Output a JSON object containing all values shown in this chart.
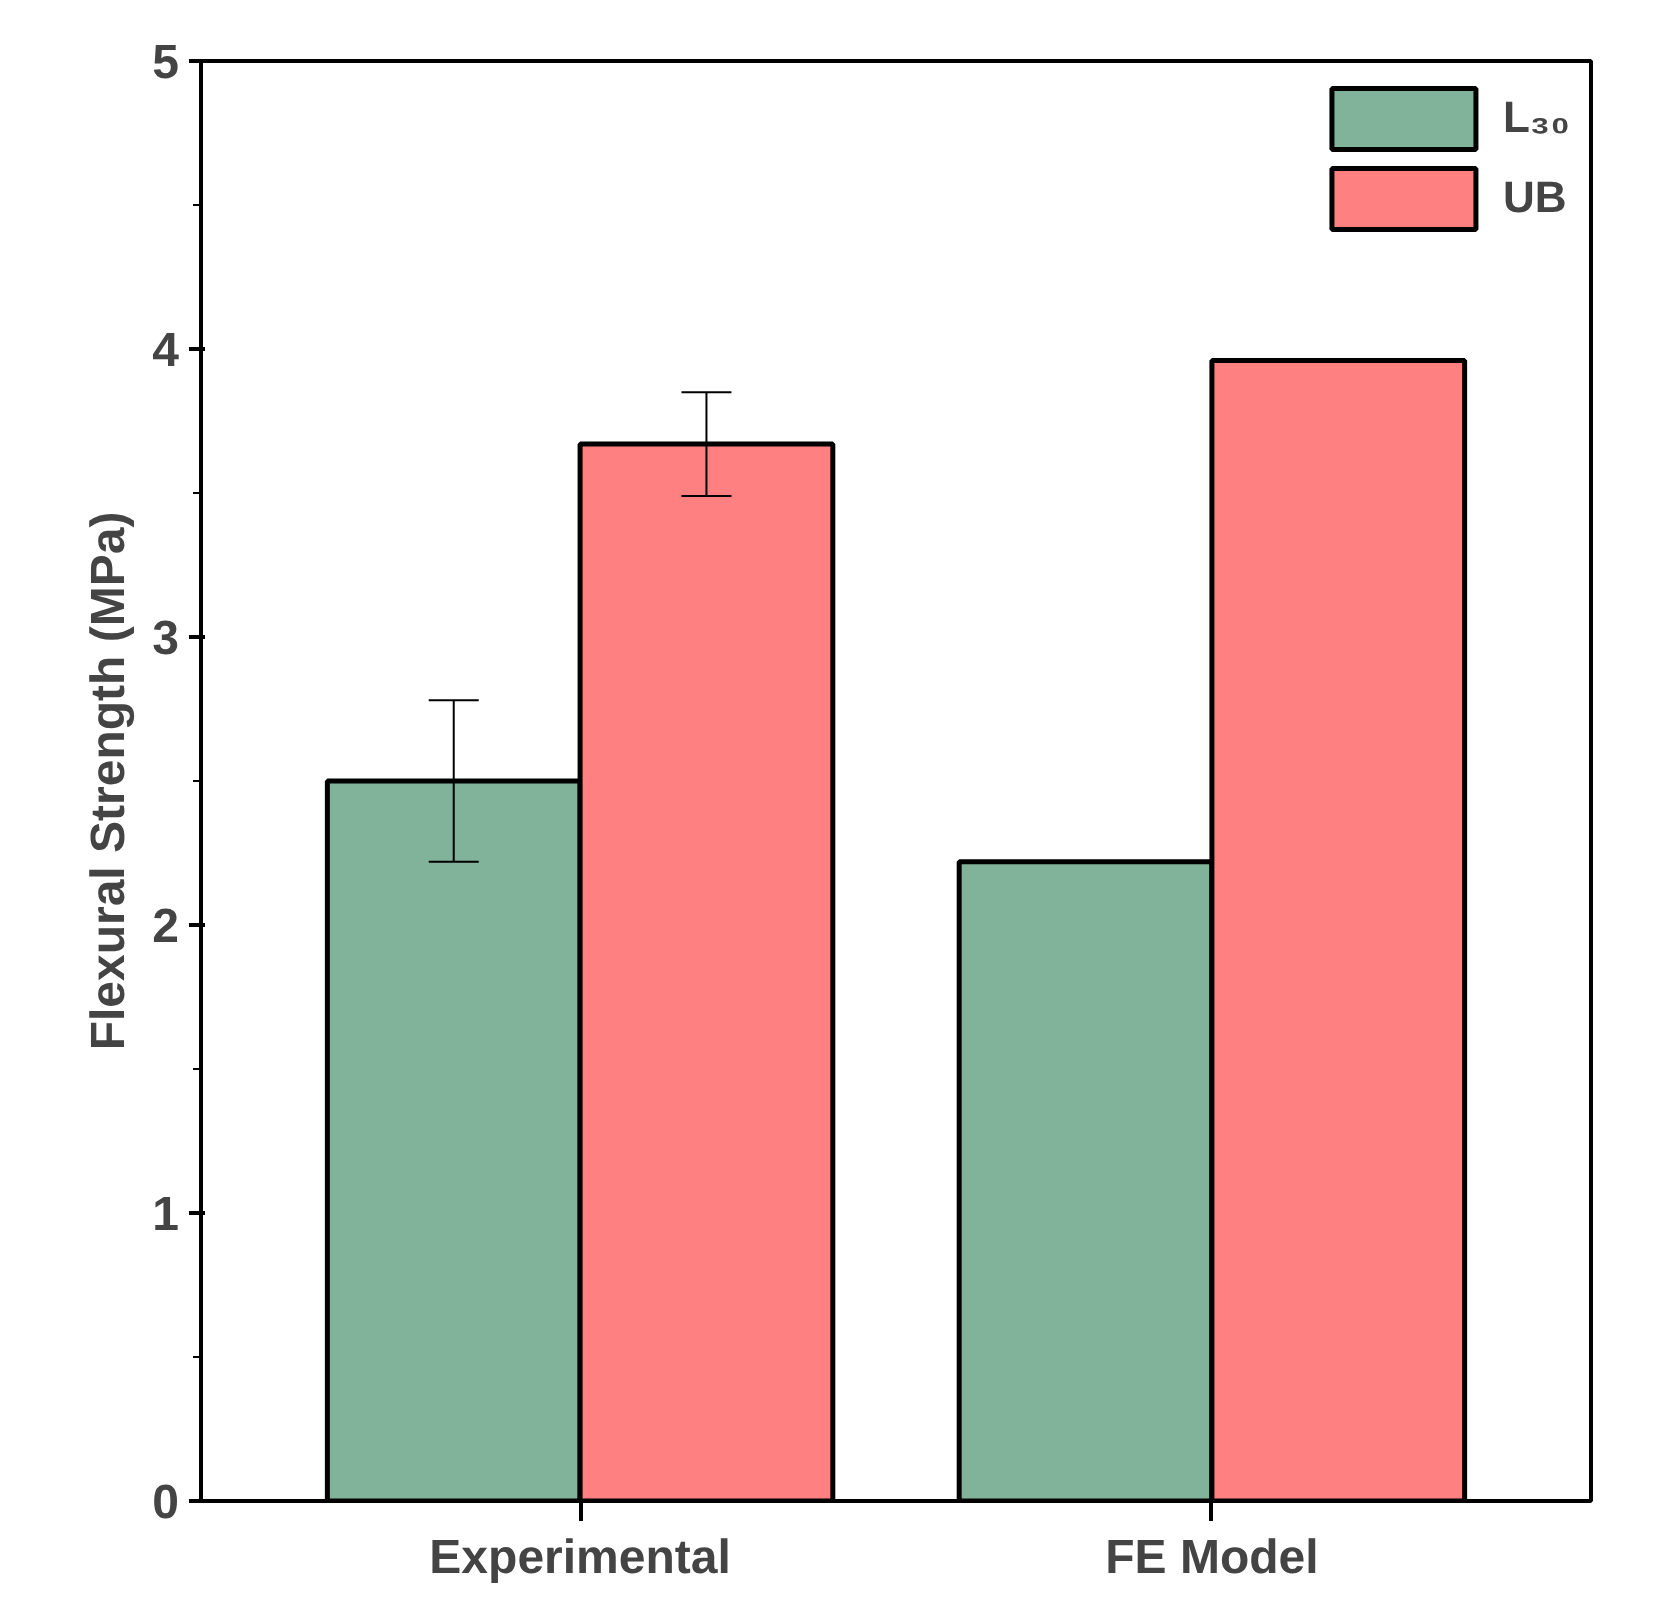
{
  "chart_data": {
    "type": "bar",
    "ylabel": "Flexural Strength (MPa)",
    "categories": [
      "Experimental",
      "FE Model"
    ],
    "series": [
      {
        "name": "L₃₀",
        "color": "#80b39a",
        "values": [
          2.5,
          2.22
        ],
        "errors": [
          0.28,
          null
        ]
      },
      {
        "name": "UB",
        "color": "#ff8080",
        "values": [
          3.67,
          3.96
        ],
        "errors": [
          0.18,
          null
        ]
      }
    ],
    "ylim": [
      0,
      5
    ],
    "yticks": [
      0,
      1,
      2,
      3,
      4,
      5
    ],
    "grid": false,
    "legend": "top right"
  }
}
